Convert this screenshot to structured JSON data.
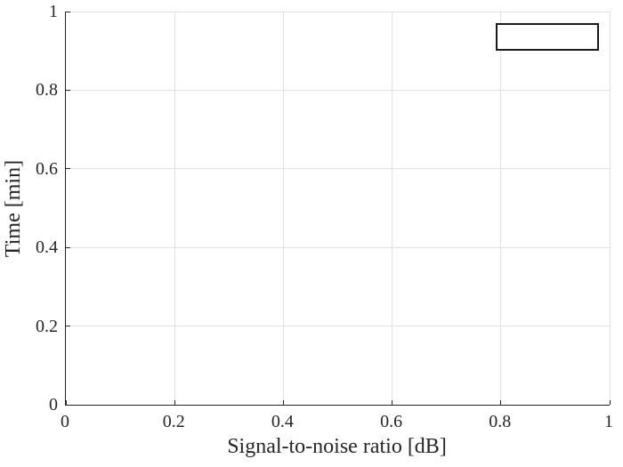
{
  "chart_data": {
    "type": "scatter",
    "title": "",
    "xlabel": "Signal-to-noise ratio [dB]",
    "ylabel": "Time [min]",
    "xlim": [
      0,
      1
    ],
    "ylim": [
      0,
      1
    ],
    "xticks": [
      0,
      0.2,
      0.4,
      0.6,
      0.8,
      1
    ],
    "yticks": [
      0,
      0.2,
      0.4,
      0.6,
      0.8,
      1
    ],
    "xtick_labels": [
      "0",
      "0.2",
      "0.4",
      "0.6",
      "0.8",
      "1"
    ],
    "ytick_labels": [
      "0",
      "0.2",
      "0.4",
      "0.6",
      "0.8",
      "1"
    ],
    "grid": true,
    "series": [],
    "legend": {
      "position": "northeast",
      "entries": [],
      "shown_as_empty_box": true,
      "box_x_range": [
        0.79,
        0.98
      ],
      "box_y_range": [
        0.9,
        0.97
      ]
    },
    "colors": {
      "background": "#ffffff",
      "axis": "#262626",
      "grid": "#e0e0e0",
      "text": "#262626",
      "legend_border": "#1a1a1a"
    }
  }
}
